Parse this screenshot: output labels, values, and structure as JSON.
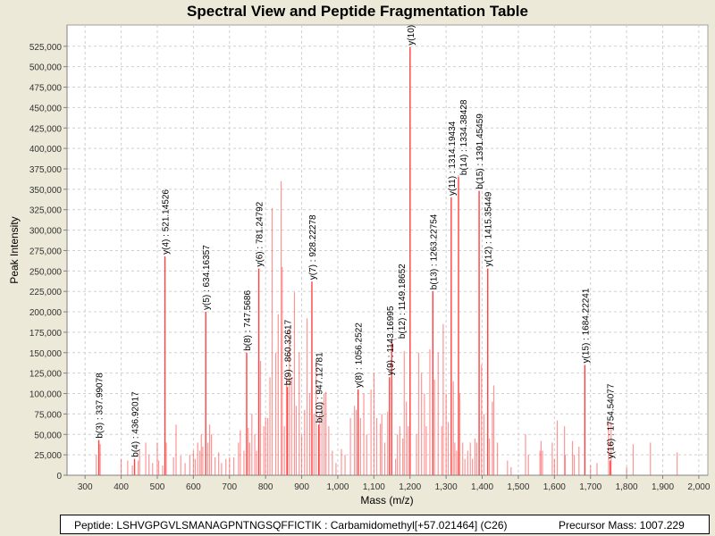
{
  "title": "Spectral View and Peptide Fragmentation Table",
  "footer": {
    "peptide": "Peptide: LSHVGPGVLSMANAGPNTNGSQFFICTIK : Carbamidomethyl[+57.021464] (C26)",
    "precursor": "Precursor Mass: 1007.229"
  },
  "chart_data": {
    "type": "bar",
    "title": "Spectral View and Peptide Fragmentation Table",
    "xlabel": "Mass (m/z)",
    "ylabel": "Peak Intensity",
    "xlim": [
      250,
      2025
    ],
    "ylim": [
      0,
      551000
    ],
    "xticks": [
      300,
      400,
      500,
      600,
      700,
      800,
      900,
      1000,
      1100,
      1200,
      1300,
      1400,
      1500,
      1600,
      1700,
      1800,
      1900,
      2000
    ],
    "xtick_labels": [
      "300",
      "400",
      "500",
      "600",
      "700",
      "800",
      "900",
      "1,000",
      "1,100",
      "1,200",
      "1,300",
      "1,400",
      "1,500",
      "1,600",
      "1,700",
      "1,800",
      "1,900",
      "2,000"
    ],
    "yticks": [
      0,
      25000,
      50000,
      75000,
      100000,
      125000,
      150000,
      175000,
      200000,
      225000,
      250000,
      275000,
      300000,
      325000,
      350000,
      375000,
      400000,
      425000,
      450000,
      475000,
      500000,
      525000
    ],
    "ytick_labels": [
      "0",
      "25,000",
      "50,000",
      "75,000",
      "100,000",
      "125,000",
      "150,000",
      "175,000",
      "200,000",
      "225,000",
      "250,000",
      "275,000",
      "300,000",
      "325,000",
      "350,000",
      "375,000",
      "400,000",
      "425,000",
      "450,000",
      "475,000",
      "500,000",
      "525,000"
    ],
    "grid": true,
    "bar_color": "#ff4040",
    "annotated_peaks": [
      {
        "mz": 337.99078,
        "intensity": 43000,
        "label": "b(3) : 337.99078"
      },
      {
        "mz": 436.92017,
        "intensity": 20000,
        "label": "b(4) : 436.92017"
      },
      {
        "mz": 521.14526,
        "intensity": 268000,
        "label": "y(4) : 521.14526"
      },
      {
        "mz": 634.16357,
        "intensity": 200000,
        "label": "y(5) : 634.16357"
      },
      {
        "mz": 747.5686,
        "intensity": 150000,
        "label": "b(8) : 747.5686"
      },
      {
        "mz": 781.24792,
        "intensity": 253000,
        "label": "y(6) : 781.24792"
      },
      {
        "mz": 860.32617,
        "intensity": 108000,
        "label": "b(9) : 860.32617"
      },
      {
        "mz": 928.22278,
        "intensity": 237000,
        "label": "y(7) : 928.22278"
      },
      {
        "mz": 947.12781,
        "intensity": 62000,
        "label": "b(10) : 947.12781"
      },
      {
        "mz": 1056.2522,
        "intensity": 105000,
        "label": "y(8) : 1056.2522"
      },
      {
        "mz": 1143.16995,
        "intensity": 120000,
        "label": "y(9) : 1143.16995"
      },
      {
        "mz": 1149.18652,
        "intensity": 165000,
        "label": "b(12) : 1149.18652"
      },
      {
        "mz": 1200.2,
        "intensity": 524000,
        "label": "y(10)"
      },
      {
        "mz": 1263.22754,
        "intensity": 225000,
        "label": "b(13) : 1263.22754"
      },
      {
        "mz": 1314.19434,
        "intensity": 340000,
        "label": "y(11) : 1314.19434"
      },
      {
        "mz": 1334.38428,
        "intensity": 365000,
        "label": "b(14) : 1334.38428"
      },
      {
        "mz": 1391.45459,
        "intensity": 348000,
        "label": "b(15) : 1391.45459"
      },
      {
        "mz": 1415.35449,
        "intensity": 253000,
        "label": "y(12) : 1415.35449"
      },
      {
        "mz": 1684.22241,
        "intensity": 135000,
        "label": "y(15) : 1684.22241"
      },
      {
        "mz": 1754.54077,
        "intensity": 18000,
        "label": "y(16) : 1754.54077"
      }
    ],
    "peaks": [
      [
        331,
        25000
      ],
      [
        342,
        38000
      ],
      [
        400,
        20000
      ],
      [
        418,
        18000
      ],
      [
        431,
        12000
      ],
      [
        447,
        18000
      ],
      [
        451,
        30000
      ],
      [
        468,
        40000
      ],
      [
        477,
        25000
      ],
      [
        487,
        15000
      ],
      [
        500,
        40000
      ],
      [
        504,
        18000
      ],
      [
        515,
        12000
      ],
      [
        525,
        40000
      ],
      [
        545,
        22000
      ],
      [
        552,
        62000
      ],
      [
        565,
        24000
      ],
      [
        577,
        15000
      ],
      [
        590,
        25000
      ],
      [
        600,
        30000
      ],
      [
        605,
        20000
      ],
      [
        612,
        40000
      ],
      [
        618,
        30000
      ],
      [
        622,
        50000
      ],
      [
        626,
        35000
      ],
      [
        640,
        40000
      ],
      [
        645,
        62000
      ],
      [
        650,
        50000
      ],
      [
        660,
        22000
      ],
      [
        670,
        28000
      ],
      [
        678,
        15000
      ],
      [
        690,
        20000
      ],
      [
        700,
        22000
      ],
      [
        712,
        22000
      ],
      [
        725,
        40000
      ],
      [
        730,
        55000
      ],
      [
        740,
        30000
      ],
      [
        752,
        58000
      ],
      [
        756,
        40000
      ],
      [
        762,
        75000
      ],
      [
        770,
        50000
      ],
      [
        775,
        30000
      ],
      [
        786,
        140000
      ],
      [
        795,
        60000
      ],
      [
        800,
        70000
      ],
      [
        806,
        70000
      ],
      [
        812,
        120000
      ],
      [
        818,
        327000
      ],
      [
        828,
        150000
      ],
      [
        835,
        197000
      ],
      [
        843,
        360000
      ],
      [
        846,
        255000
      ],
      [
        852,
        60000
      ],
      [
        858,
        120000
      ],
      [
        866,
        180000
      ],
      [
        872,
        120000
      ],
      [
        880,
        224000
      ],
      [
        885,
        85000
      ],
      [
        893,
        150000
      ],
      [
        900,
        50000
      ],
      [
        908,
        80000
      ],
      [
        915,
        192000
      ],
      [
        922,
        100000
      ],
      [
        934,
        75000
      ],
      [
        940,
        140000
      ],
      [
        950,
        75000
      ],
      [
        956,
        90000
      ],
      [
        962,
        100000
      ],
      [
        967,
        102000
      ],
      [
        975,
        60000
      ],
      [
        985,
        30000
      ],
      [
        995,
        15000
      ],
      [
        1010,
        32000
      ],
      [
        1020,
        25000
      ],
      [
        1035,
        70000
      ],
      [
        1046,
        85000
      ],
      [
        1051,
        80000
      ],
      [
        1063,
        70000
      ],
      [
        1072,
        100000
      ],
      [
        1080,
        50000
      ],
      [
        1092,
        105000
      ],
      [
        1100,
        125000
      ],
      [
        1108,
        70000
      ],
      [
        1118,
        63000
      ],
      [
        1122,
        75000
      ],
      [
        1130,
        40000
      ],
      [
        1138,
        78000
      ],
      [
        1160,
        20000
      ],
      [
        1165,
        50000
      ],
      [
        1172,
        60000
      ],
      [
        1180,
        45000
      ],
      [
        1184,
        152000
      ],
      [
        1190,
        90000
      ],
      [
        1195,
        60000
      ],
      [
        1218,
        50000
      ],
      [
        1224,
        150000
      ],
      [
        1232,
        125000
      ],
      [
        1240,
        100000
      ],
      [
        1245,
        60000
      ],
      [
        1255,
        154000
      ],
      [
        1268,
        117000
      ],
      [
        1278,
        150000
      ],
      [
        1288,
        60000
      ],
      [
        1292,
        185000
      ],
      [
        1300,
        100000
      ],
      [
        1306,
        65000
      ],
      [
        1320,
        115000
      ],
      [
        1324,
        40000
      ],
      [
        1329,
        30000
      ],
      [
        1338,
        100000
      ],
      [
        1346,
        40000
      ],
      [
        1352,
        20000
      ],
      [
        1360,
        30000
      ],
      [
        1367,
        40000
      ],
      [
        1373,
        20000
      ],
      [
        1380,
        45000
      ],
      [
        1385,
        40000
      ],
      [
        1398,
        135000
      ],
      [
        1405,
        75000
      ],
      [
        1420,
        45000
      ],
      [
        1428,
        90000
      ],
      [
        1432,
        110000
      ],
      [
        1442,
        40000
      ],
      [
        1470,
        18000
      ],
      [
        1480,
        10000
      ],
      [
        1520,
        50000
      ],
      [
        1528,
        25000
      ],
      [
        1560,
        30000
      ],
      [
        1563,
        42000
      ],
      [
        1567,
        30000
      ],
      [
        1594,
        40000
      ],
      [
        1600,
        20000
      ],
      [
        1608,
        67000
      ],
      [
        1628,
        60000
      ],
      [
        1630,
        25000
      ],
      [
        1650,
        42000
      ],
      [
        1655,
        25000
      ],
      [
        1668,
        35000
      ],
      [
        1700,
        12000
      ],
      [
        1718,
        15000
      ],
      [
        1750,
        65000
      ],
      [
        1757,
        65000
      ],
      [
        1800,
        10000
      ],
      [
        1818,
        38000
      ],
      [
        1866,
        40000
      ],
      [
        1940,
        28000
      ]
    ]
  }
}
